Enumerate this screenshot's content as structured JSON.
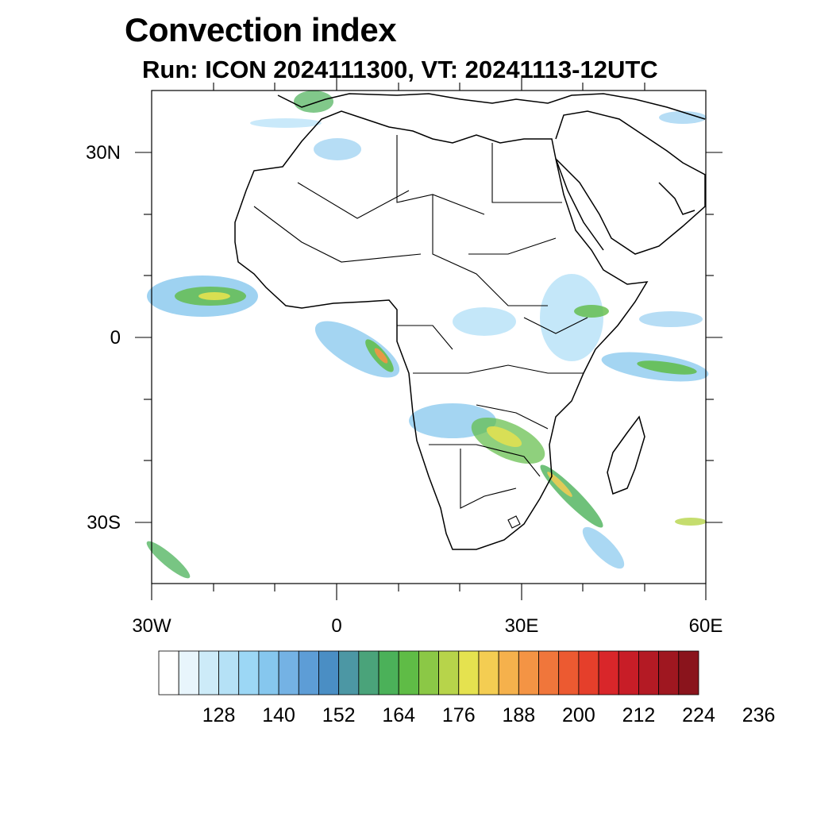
{
  "header": {
    "title": "Convection index",
    "subtitle": "Run: ICON 2024111300,  VT: 20241113-12UTC"
  },
  "map": {
    "lat_labels": [
      "30N",
      "0",
      "30S"
    ],
    "lon_labels": [
      "30W",
      "0",
      "30E",
      "60E"
    ],
    "region": "Africa",
    "lon_range": [
      -30,
      60
    ],
    "lat_range": [
      -40,
      40
    ]
  },
  "colorbar": {
    "labels": [
      "128",
      "140",
      "152",
      "164",
      "176",
      "188",
      "200",
      "212",
      "224",
      "236"
    ],
    "colors": [
      "#ffffff",
      "#e8f5fc",
      "#cdebf8",
      "#b5e1f6",
      "#9cd7f5",
      "#86c7ee",
      "#74b2e4",
      "#5d9dd6",
      "#4a8ec4",
      "#4c97a4",
      "#4aa37a",
      "#4bb159",
      "#5fbc46",
      "#8bc846",
      "#b7d44a",
      "#e5e24f",
      "#f4cd52",
      "#f5b14c",
      "#f49444",
      "#f0763b",
      "#ec5a31",
      "#e53f2b",
      "#d9262a",
      "#c81d27",
      "#b41a24",
      "#9f1720",
      "#8a141c"
    ]
  },
  "colors": {
    "land_line": "#000000",
    "frame": "#000000"
  }
}
